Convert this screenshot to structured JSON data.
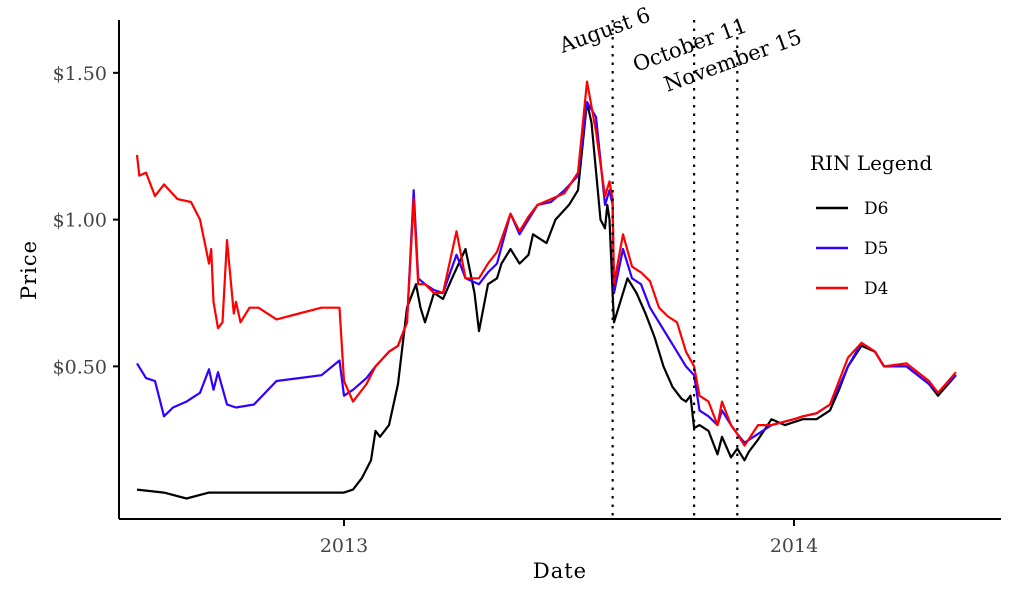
{
  "chart_data": {
    "type": "line",
    "xlabel": "Date",
    "ylabel": "Price",
    "x_ticks": [
      {
        "label": "2013",
        "year": 2013.0
      },
      {
        "label": "2014",
        "year": 2014.0
      }
    ],
    "y_ticks": [
      {
        "label": "$0.50",
        "value": 0.5
      },
      {
        "label": "$1.00",
        "value": 1.0
      },
      {
        "label": "$1.50",
        "value": 1.5
      }
    ],
    "xlim": [
      2012.5,
      2014.46
    ],
    "ylim": [
      -0.02,
      1.68
    ],
    "grid": false,
    "legend": {
      "title": "RIN Legend",
      "position": "right"
    },
    "annotations": [
      {
        "label": "August 6",
        "year": 2013.597
      },
      {
        "label": "October 11",
        "year": 2013.778
      },
      {
        "label": "November 15",
        "year": 2013.874
      }
    ],
    "series": [
      {
        "name": "D6",
        "color": "#000000",
        "x": [
          2012.54,
          2012.6,
          2012.65,
          2012.7,
          2012.76,
          2012.85,
          2012.95,
          2013.0,
          2013.02,
          2013.04,
          2013.06,
          2013.07,
          2013.08,
          2013.1,
          2013.12,
          2013.14,
          2013.16,
          2013.17,
          2013.18,
          2013.2,
          2013.22,
          2013.24,
          2013.27,
          2013.29,
          2013.3,
          2013.32,
          2013.34,
          2013.35,
          2013.37,
          2013.39,
          2013.41,
          2013.42,
          2013.45,
          2013.47,
          2013.5,
          2013.52,
          2013.54,
          2013.55,
          2013.57,
          2013.58,
          2013.585,
          2013.59,
          2013.597,
          2013.6,
          2013.61,
          2013.63,
          2013.65,
          2013.67,
          2013.69,
          2013.71,
          2013.73,
          2013.75,
          2013.76,
          2013.77,
          2013.778,
          2013.79,
          2013.81,
          2013.83,
          2013.84,
          2013.86,
          2013.874,
          2013.89,
          2013.9,
          2013.92,
          2013.95,
          2013.98,
          2014.0,
          2014.02,
          2014.05,
          2014.08,
          2014.1,
          2014.12,
          2014.15,
          2014.18,
          2014.2,
          2014.25,
          2014.3,
          2014.32,
          2014.36
        ],
        "y": [
          0.08,
          0.07,
          0.05,
          0.07,
          0.07,
          0.07,
          0.07,
          0.07,
          0.08,
          0.12,
          0.18,
          0.28,
          0.26,
          0.3,
          0.44,
          0.7,
          0.78,
          0.7,
          0.65,
          0.75,
          0.73,
          0.8,
          0.9,
          0.75,
          0.62,
          0.78,
          0.8,
          0.85,
          0.9,
          0.85,
          0.88,
          0.95,
          0.92,
          1.0,
          1.05,
          1.1,
          1.4,
          1.33,
          1.0,
          0.97,
          1.05,
          1.0,
          0.75,
          0.65,
          0.7,
          0.8,
          0.75,
          0.68,
          0.6,
          0.5,
          0.43,
          0.39,
          0.38,
          0.4,
          0.29,
          0.3,
          0.28,
          0.2,
          0.26,
          0.19,
          0.22,
          0.18,
          0.21,
          0.25,
          0.32,
          0.3,
          0.31,
          0.32,
          0.32,
          0.35,
          0.42,
          0.5,
          0.57,
          0.55,
          0.5,
          0.5,
          0.44,
          0.4,
          0.47
        ]
      },
      {
        "name": "D5",
        "color": "#3300ff",
        "x": [
          2012.54,
          2012.56,
          2012.58,
          2012.6,
          2012.62,
          2012.65,
          2012.68,
          2012.7,
          2012.71,
          2012.72,
          2012.74,
          2012.76,
          2012.8,
          2012.85,
          2012.9,
          2012.95,
          2012.99,
          2013.0,
          2013.02,
          2013.05,
          2013.07,
          2013.1,
          2013.12,
          2013.14,
          2013.155,
          2013.165,
          2013.18,
          2013.2,
          2013.22,
          2013.25,
          2013.27,
          2013.3,
          2013.32,
          2013.34,
          2013.37,
          2013.39,
          2013.41,
          2013.43,
          2013.46,
          2013.49,
          2013.52,
          2013.54,
          2013.56,
          2013.58,
          2013.59,
          2013.597,
          2013.6,
          2013.62,
          2013.64,
          2013.66,
          2013.68,
          2013.7,
          2013.72,
          2013.74,
          2013.76,
          2013.778,
          2013.79,
          2013.81,
          2013.83,
          2013.84,
          2013.86,
          2013.874,
          2013.89,
          2013.92,
          2013.95,
          2014.0,
          2014.02,
          2014.05,
          2014.08,
          2014.1,
          2014.12,
          2014.15,
          2014.18,
          2014.2,
          2014.25,
          2014.3,
          2014.32,
          2014.36
        ],
        "y": [
          0.51,
          0.46,
          0.45,
          0.33,
          0.36,
          0.38,
          0.41,
          0.49,
          0.42,
          0.48,
          0.37,
          0.36,
          0.37,
          0.45,
          0.46,
          0.47,
          0.52,
          0.4,
          0.42,
          0.46,
          0.5,
          0.55,
          0.57,
          0.65,
          1.1,
          0.8,
          0.78,
          0.76,
          0.75,
          0.88,
          0.8,
          0.78,
          0.82,
          0.85,
          1.02,
          0.95,
          1.0,
          1.05,
          1.06,
          1.1,
          1.15,
          1.4,
          1.35,
          1.05,
          1.1,
          1.05,
          0.75,
          0.9,
          0.8,
          0.78,
          0.7,
          0.65,
          0.6,
          0.55,
          0.5,
          0.47,
          0.35,
          0.33,
          0.3,
          0.35,
          0.3,
          0.27,
          0.24,
          0.27,
          0.3,
          0.32,
          0.33,
          0.34,
          0.37,
          0.43,
          0.5,
          0.58,
          0.55,
          0.5,
          0.5,
          0.44,
          0.41,
          0.47
        ]
      },
      {
        "name": "D4",
        "color": "#ff0000",
        "x": [
          2012.54,
          2012.545,
          2012.56,
          2012.58,
          2012.6,
          2012.63,
          2012.66,
          2012.68,
          2012.7,
          2012.705,
          2012.71,
          2012.72,
          2012.73,
          2012.74,
          2012.755,
          2012.76,
          2012.77,
          2012.79,
          2012.81,
          2012.85,
          2012.9,
          2012.95,
          2012.99,
          2013.0,
          2013.02,
          2013.05,
          2013.07,
          2013.1,
          2013.12,
          2013.14,
          2013.155,
          2013.165,
          2013.18,
          2013.2,
          2013.22,
          2013.25,
          2013.27,
          2013.3,
          2013.32,
          2013.34,
          2013.37,
          2013.39,
          2013.41,
          2013.43,
          2013.46,
          2013.49,
          2013.52,
          2013.54,
          2013.56,
          2013.58,
          2013.59,
          2013.597,
          2013.6,
          2013.62,
          2013.64,
          2013.66,
          2013.68,
          2013.7,
          2013.72,
          2013.74,
          2013.76,
          2013.778,
          2013.79,
          2013.81,
          2013.83,
          2013.84,
          2013.86,
          2013.874,
          2013.89,
          2013.92,
          2013.95,
          2014.0,
          2014.02,
          2014.05,
          2014.08,
          2014.1,
          2014.12,
          2014.15,
          2014.18,
          2014.2,
          2014.25,
          2014.3,
          2014.32,
          2014.36
        ],
        "y": [
          1.22,
          1.15,
          1.16,
          1.08,
          1.12,
          1.07,
          1.06,
          1.0,
          0.85,
          0.9,
          0.72,
          0.63,
          0.65,
          0.93,
          0.68,
          0.72,
          0.65,
          0.7,
          0.7,
          0.66,
          0.68,
          0.7,
          0.7,
          0.45,
          0.38,
          0.44,
          0.5,
          0.55,
          0.57,
          0.65,
          1.07,
          0.78,
          0.78,
          0.75,
          0.75,
          0.96,
          0.8,
          0.8,
          0.85,
          0.89,
          1.02,
          0.96,
          1.01,
          1.05,
          1.07,
          1.09,
          1.16,
          1.47,
          1.3,
          1.08,
          1.13,
          1.07,
          0.78,
          0.95,
          0.84,
          0.82,
          0.79,
          0.7,
          0.67,
          0.65,
          0.55,
          0.5,
          0.4,
          0.38,
          0.3,
          0.38,
          0.3,
          0.27,
          0.23,
          0.3,
          0.3,
          0.32,
          0.33,
          0.34,
          0.37,
          0.45,
          0.53,
          0.58,
          0.55,
          0.5,
          0.51,
          0.45,
          0.41,
          0.48
        ]
      }
    ]
  }
}
